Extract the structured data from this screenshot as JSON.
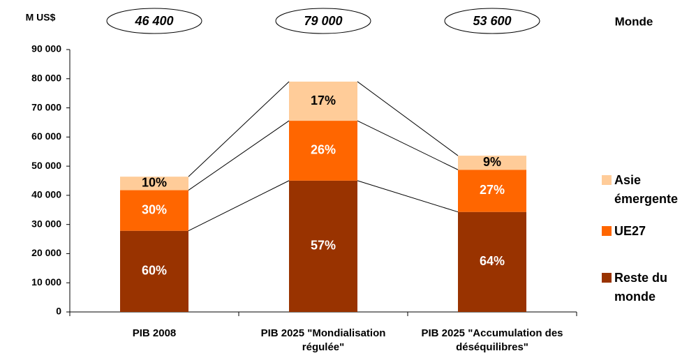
{
  "chart_data": {
    "type": "stacked_bar",
    "unit_label": "M US$",
    "totals_title": "Monde",
    "categories": [
      "PIB 2008",
      "PIB 2025 \"Mondialisation régulée\"",
      "PIB 2025 \"Accumulation des déséquilibres\""
    ],
    "totals": [
      "46 400",
      "79 000",
      "53 600"
    ],
    "series": [
      {
        "name": "Reste du monde",
        "color": "#993300",
        "label_color": "#ffffff",
        "values": [
          27840,
          45030,
          34300
        ],
        "value_labels": [
          "60%",
          "57%",
          "64%"
        ]
      },
      {
        "name": "UE27",
        "color": "#ff6600",
        "label_color": "#ffffff",
        "values": [
          13920,
          20540,
          14470
        ],
        "value_labels": [
          "30%",
          "26%",
          "27%"
        ]
      },
      {
        "name": "Asie émergente",
        "color": "#ffcc99",
        "label_color": "#000000",
        "values": [
          4640,
          13430,
          4830
        ],
        "value_labels": [
          "10%",
          "17%",
          "9%"
        ]
      }
    ],
    "ylim": [
      0,
      90000
    ],
    "yticks": [
      0,
      {
        "value": 10000,
        "label": "10 000"
      },
      {
        "value": 20000,
        "label": "20 000"
      },
      {
        "value": 30000,
        "label": "30 000"
      },
      {
        "value": 40000,
        "label": "40 000"
      },
      {
        "value": 50000,
        "label": "50 000"
      },
      {
        "value": 60000,
        "label": "60 000"
      },
      {
        "value": 70000,
        "label": "70 000"
      },
      {
        "value": 80000,
        "label": "80 000"
      },
      {
        "value": 90000,
        "label": "90 000"
      }
    ],
    "grid": false,
    "legend_position": "right"
  }
}
